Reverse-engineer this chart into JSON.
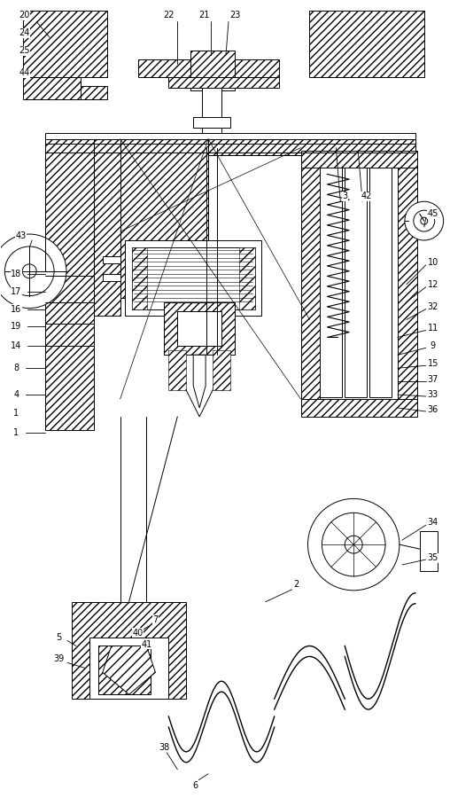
{
  "bg_color": "#ffffff",
  "line_color": "#000000",
  "figsize": [
    5.08,
    9.09
  ],
  "dpi": 100,
  "lw": 0.7,
  "hatch_lw": 0.4
}
